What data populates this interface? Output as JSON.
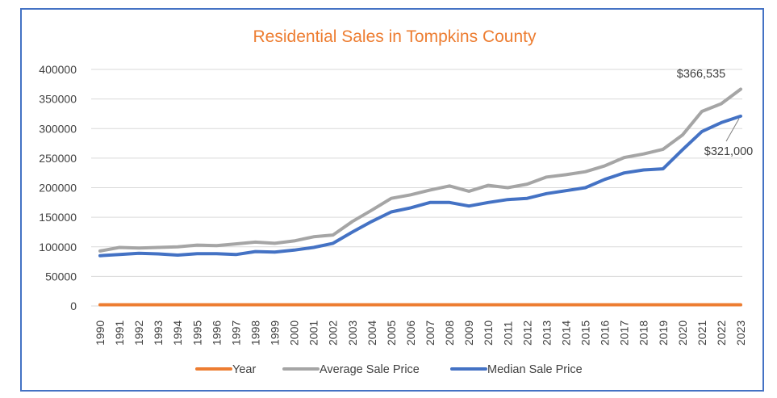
{
  "chart_data": {
    "type": "line",
    "title": "Residential Sales in Tompkins County",
    "xlabel": "",
    "ylabel": "",
    "ylim": [
      0,
      400000
    ],
    "yticks": [
      "400000",
      "350000",
      "300000",
      "250000",
      "200000",
      "150000",
      "100000",
      "50000",
      "0"
    ],
    "grid": true,
    "legend_position": "bottom",
    "categories": [
      "1990",
      "1991",
      "1992",
      "1993",
      "1994",
      "1995",
      "1996",
      "1997",
      "1998",
      "1999",
      "2000",
      "2001",
      "2002",
      "2003",
      "2004",
      "2005",
      "2006",
      "2007",
      "2008",
      "2009",
      "2010",
      "2011",
      "2012",
      "2013",
      "2014",
      "2015",
      "2016",
      "2017",
      "2018",
      "2019",
      "2020",
      "2021",
      "2022",
      "2023"
    ],
    "series": [
      {
        "name": "Year",
        "color": "#ed7d31",
        "values": [
          1990,
          1991,
          1992,
          1993,
          1994,
          1995,
          1996,
          1997,
          1998,
          1999,
          2000,
          2001,
          2002,
          2003,
          2004,
          2005,
          2006,
          2007,
          2008,
          2009,
          2010,
          2011,
          2012,
          2013,
          2014,
          2015,
          2016,
          2017,
          2018,
          2019,
          2020,
          2021,
          2022,
          2023
        ]
      },
      {
        "name": "Average Sale Price",
        "color": "#a5a5a5",
        "values": [
          93000,
          99000,
          98000,
          99000,
          100000,
          103000,
          102000,
          105000,
          108000,
          106000,
          110000,
          117000,
          120000,
          143000,
          162000,
          182000,
          188000,
          196000,
          203000,
          194000,
          204000,
          200000,
          206000,
          218000,
          222000,
          227000,
          237000,
          251000,
          257000,
          265000,
          289000,
          329000,
          342000,
          366535
        ]
      },
      {
        "name": "Median Sale Price",
        "color": "#4472c4",
        "values": [
          85000,
          87000,
          89000,
          88000,
          86000,
          88500,
          88500,
          87000,
          92000,
          91000,
          94500,
          99000,
          106000,
          125000,
          143000,
          159000,
          166000,
          175000,
          175000,
          169000,
          175000,
          180000,
          182000,
          190000,
          195000,
          200000,
          214000,
          225000,
          230000,
          232000,
          264000,
          295000,
          310000,
          321000
        ]
      }
    ],
    "annotations": [
      {
        "text": "$366,535",
        "series": "Average Sale Price",
        "x": "2023"
      },
      {
        "text": "$321,000",
        "series": "Median Sale Price",
        "x": "2023"
      }
    ]
  }
}
